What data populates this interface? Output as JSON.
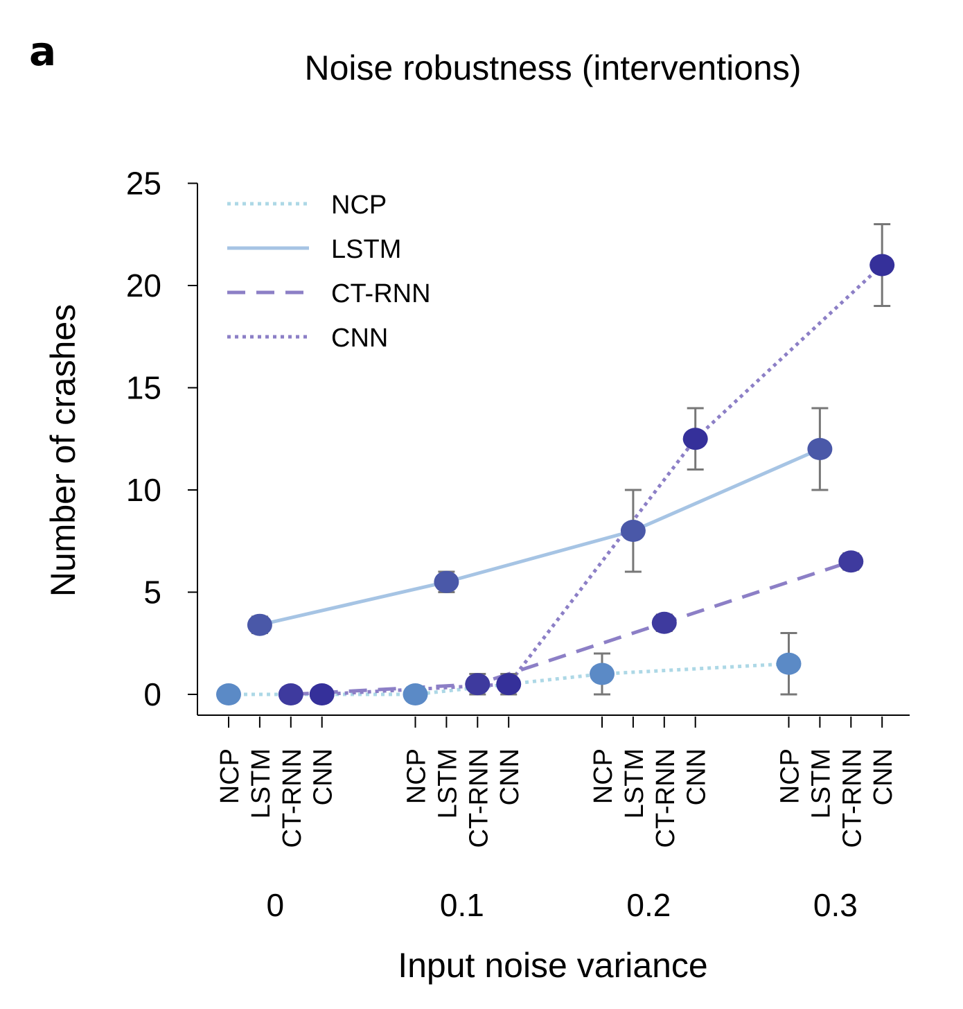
{
  "panel_label": "a",
  "chart_data": {
    "type": "line",
    "title": "Noise robustness (interventions)",
    "xlabel": "Input noise variance",
    "ylabel": "Number of crashes",
    "ylim": [
      0,
      25
    ],
    "yticks": [
      0,
      5,
      10,
      15,
      20,
      25
    ],
    "groups": [
      "0",
      "0.1",
      "0.2",
      "0.3"
    ],
    "models": [
      "NCP",
      "LSTM",
      "CT-RNN",
      "CNN"
    ],
    "legend": {
      "position": "top-left",
      "entries": [
        "NCP",
        "LSTM",
        "CT-RNN",
        "CNN"
      ]
    },
    "grid": false,
    "series": [
      {
        "name": "NCP",
        "values": [
          0,
          0,
          1,
          1.5
        ],
        "errors": [
          0,
          0,
          1,
          1.5
        ],
        "line_color": "#ADD8E6",
        "marker_color": "#5B8AC6",
        "dash": "dotted"
      },
      {
        "name": "LSTM",
        "values": [
          3.4,
          5.5,
          8,
          12
        ],
        "errors": [
          0.4,
          0.5,
          2,
          2
        ],
        "line_color": "#A6C4E4",
        "marker_color": "#4A58A8",
        "dash": "solid"
      },
      {
        "name": "CT-RNN",
        "values": [
          0,
          0.5,
          3.5,
          6.5
        ],
        "errors": [
          0,
          0.5,
          0.4,
          0.4
        ],
        "line_color": "#8C7FC6",
        "marker_color": "#3E3A9E",
        "dash": "dashed"
      },
      {
        "name": "CNN",
        "values": [
          0,
          0.5,
          12.5,
          21
        ],
        "errors": [
          0,
          0.5,
          1.5,
          2
        ],
        "line_color": "#8C7FC6",
        "marker_color": "#35309A",
        "dash": "dotted"
      }
    ]
  }
}
